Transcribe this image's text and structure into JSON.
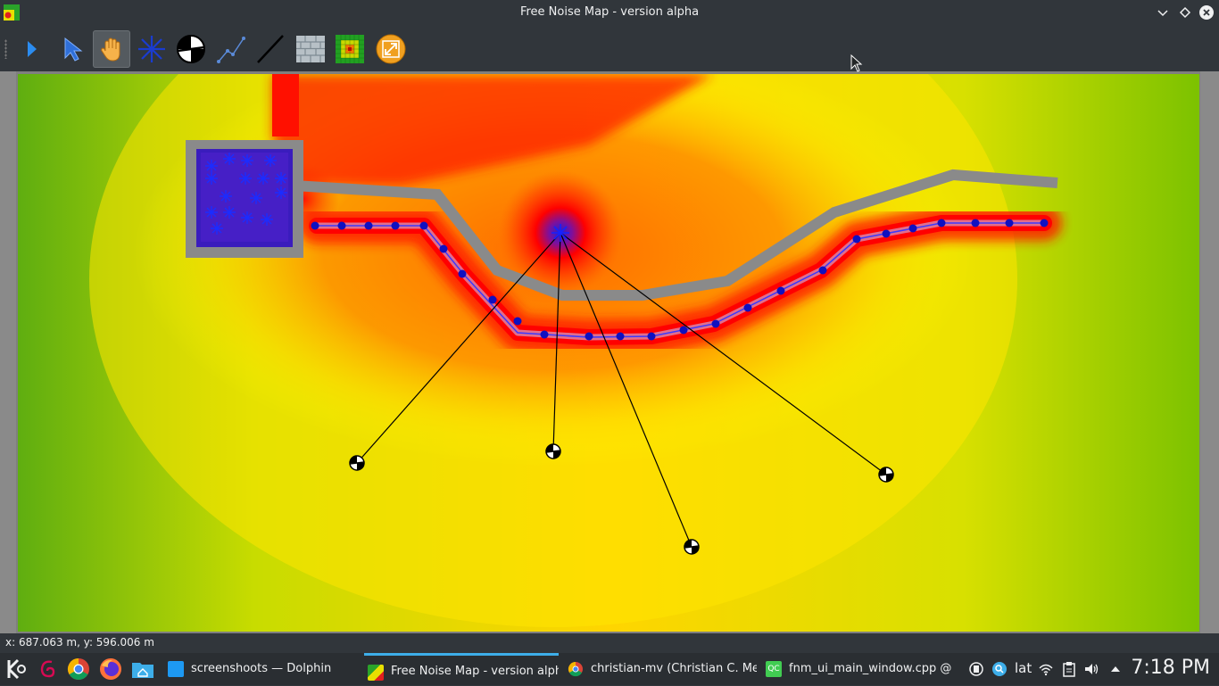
{
  "window": {
    "title": "Free Noise Map - version alpha"
  },
  "toolbar": {
    "tools": [
      {
        "icon": "run-arrow-icon",
        "active": false
      },
      {
        "icon": "select-pointer-icon",
        "active": false
      },
      {
        "icon": "pan-hand-icon",
        "active": true
      },
      {
        "icon": "point-source-icon",
        "active": false
      },
      {
        "icon": "receiver-icon",
        "active": false
      },
      {
        "icon": "line-source-icon",
        "active": false
      },
      {
        "icon": "barrier-line-icon",
        "active": false
      },
      {
        "icon": "building-wall-icon",
        "active": false
      },
      {
        "icon": "noise-grid-icon",
        "active": false
      },
      {
        "icon": "zoom-fit-icon",
        "active": false
      }
    ]
  },
  "status": {
    "coordinates": "x: 687.063 m, y: 596.006 m"
  },
  "colors": {
    "road_line": "#3a3aff",
    "road_node": "#1010c0",
    "barrier": "#888888",
    "ray": "#000000",
    "accent": "#3daee9"
  },
  "taskbar": {
    "tasks": [
      {
        "label": "screenshoots — Dolphin",
        "icon": "dolphin-icon",
        "active": false
      },
      {
        "label": "Free Noise Map - version alpha",
        "icon": "free-noise-map-icon",
        "active": true
      },
      {
        "label": "christian-mv (Christian C. Me...",
        "icon": "chrome-icon",
        "active": false
      },
      {
        "label": "fnm_ui_main_window.cpp @ ...",
        "icon": "qtcreator-icon",
        "active": false
      }
    ],
    "keyboard_layout": "lat",
    "clock": "7:18 PM"
  }
}
